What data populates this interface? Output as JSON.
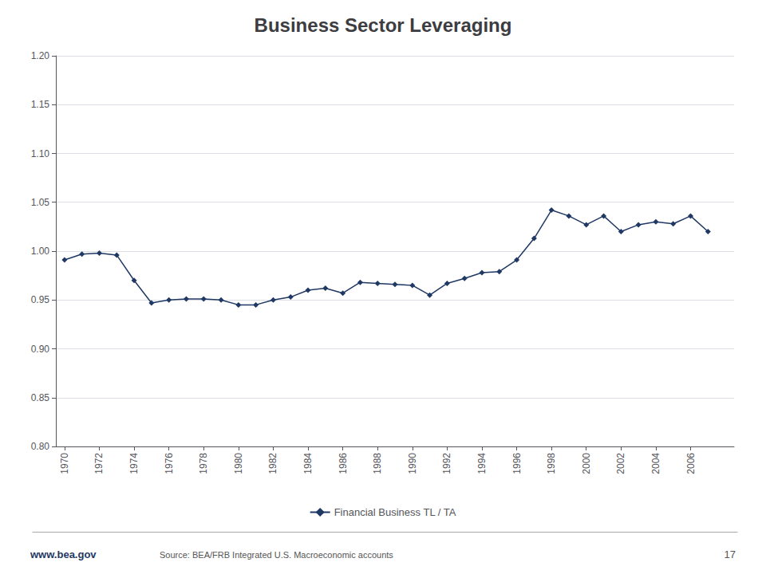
{
  "chart_data": {
    "type": "line",
    "title": "Business Sector Leveraging",
    "annotations": [
      "www.bea.gov",
      "Source: BEA/FRB Integrated U.S. Macroeconomic accounts",
      "17"
    ],
    "x": [
      1970,
      1971,
      1972,
      1973,
      1974,
      1975,
      1976,
      1977,
      1978,
      1979,
      1980,
      1981,
      1982,
      1983,
      1984,
      1985,
      1986,
      1987,
      1988,
      1989,
      1990,
      1991,
      1992,
      1993,
      1994,
      1995,
      1996,
      1997,
      1998,
      1999,
      2000,
      2001,
      2002,
      2003,
      2004,
      2005,
      2006,
      2007
    ],
    "series": [
      {
        "name": "Financial Business TL / TA",
        "color": "#1F3864",
        "marker": "diamond",
        "values": [
          0.991,
          0.997,
          0.998,
          0.996,
          0.97,
          0.947,
          0.95,
          0.951,
          0.951,
          0.95,
          0.945,
          0.945,
          0.95,
          0.953,
          0.96,
          0.962,
          0.957,
          0.968,
          0.967,
          0.966,
          0.965,
          0.955,
          0.967,
          0.972,
          0.978,
          0.979,
          0.991,
          1.013,
          1.042,
          1.036,
          1.027,
          1.036,
          1.02,
          1.027,
          1.03,
          1.028,
          1.036,
          1.02
        ]
      }
    ],
    "xlim": [
      1969.5,
      2008.5
    ],
    "xticks": [
      1970,
      1972,
      1974,
      1976,
      1978,
      1980,
      1982,
      1984,
      1986,
      1988,
      1990,
      1992,
      1994,
      1996,
      1998,
      2000,
      2002,
      2004,
      2006
    ],
    "ylim": [
      0.8,
      1.2
    ],
    "yticks": [
      {
        "value": 0.8,
        "label": "0.80"
      },
      {
        "value": 0.85,
        "label": "0.85"
      },
      {
        "value": 0.9,
        "label": "0.90"
      },
      {
        "value": 0.95,
        "label": "0.95"
      },
      {
        "value": 1.0,
        "label": "1.00"
      },
      {
        "value": 1.05,
        "label": "1.05"
      },
      {
        "value": 1.1,
        "label": "1.10"
      },
      {
        "value": 1.15,
        "label": "1.15"
      },
      {
        "value": 1.2,
        "label": "1.20"
      }
    ],
    "grid": "y",
    "legend": "bottom"
  }
}
